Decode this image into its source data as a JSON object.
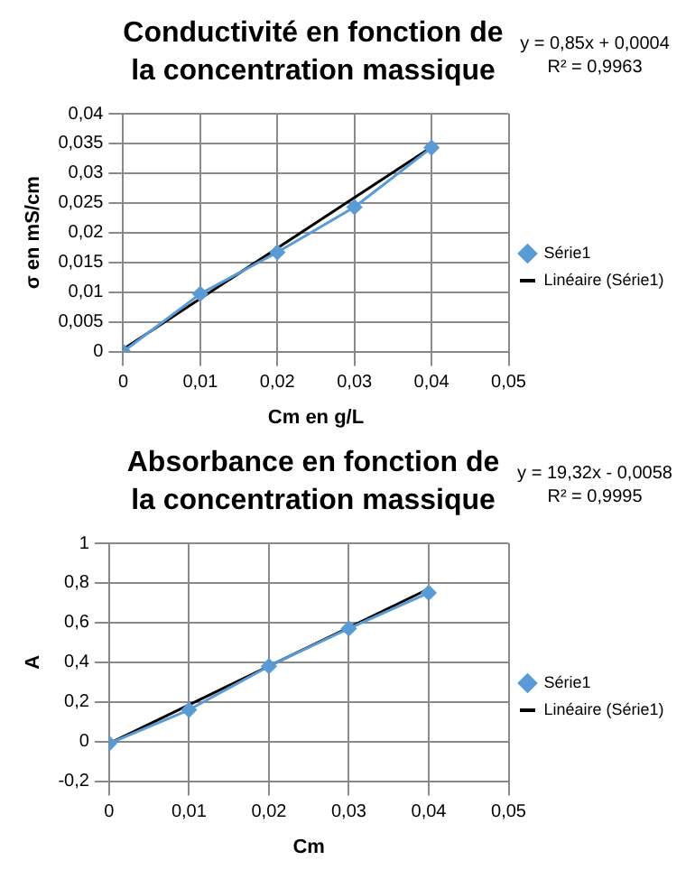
{
  "chart_data": [
    {
      "type": "line",
      "title": "Conductivité en fonction de la concentration massique",
      "xlabel": "Cm en g/L",
      "ylabel": "σ en mS/cm",
      "annotations": [
        "y = 0,85x + 0,0004",
        "R² = 0,9963"
      ],
      "legend": "right",
      "grid": true,
      "xlim": [
        0,
        0.05
      ],
      "xticks": [
        {
          "value": 0,
          "label": "0"
        },
        {
          "value": 0.01,
          "label": "0,01"
        },
        {
          "value": 0.02,
          "label": "0,02"
        },
        {
          "value": 0.03,
          "label": "0,03"
        },
        {
          "value": 0.04,
          "label": "0,04"
        },
        {
          "value": 0.05,
          "label": "0,05"
        }
      ],
      "ylim": [
        0,
        0.04
      ],
      "yticks": [
        {
          "value": 0,
          "label": "0"
        },
        {
          "value": 0.005,
          "label": "0,005"
        },
        {
          "value": 0.01,
          "label": "0,01"
        },
        {
          "value": 0.015,
          "label": "0,015"
        },
        {
          "value": 0.02,
          "label": "0,02"
        },
        {
          "value": 0.025,
          "label": "0,025"
        },
        {
          "value": 0.03,
          "label": "0,03"
        },
        {
          "value": 0.035,
          "label": "0,035"
        },
        {
          "value": 0.04,
          "label": "0,04"
        }
      ],
      "series": [
        {
          "name": "Série1",
          "color": "#5b9bd5",
          "marker": "diamond",
          "x": [
            0,
            0.01,
            0.02,
            0.03,
            0.04
          ],
          "values": [
            0,
            0.0097,
            0.0167,
            0.0243,
            0.0343
          ]
        },
        {
          "name": "Linéaire (Série1)",
          "color": "#000000",
          "marker": "none",
          "x": [
            0,
            0.04
          ],
          "values": [
            0.0004,
            0.0344
          ]
        }
      ]
    },
    {
      "type": "line",
      "title": "Absorbance en fonction de la concentration massique",
      "xlabel": "Cm",
      "ylabel": "A",
      "annotations": [
        "y = 19,32x - 0,0058",
        "R² = 0,9995"
      ],
      "legend": "right",
      "grid": true,
      "xlim": [
        0,
        0.05
      ],
      "xticks": [
        0,
        {
          "value": 0.01,
          "label": "0,01"
        },
        {
          "value": 0.02,
          "label": "0,02"
        },
        {
          "value": 0.03,
          "label": "0,03"
        },
        {
          "value": 0.04,
          "label": "0,04"
        },
        {
          "value": 0.05,
          "label": "0,05"
        }
      ],
      "ylim": [
        -0.2,
        1
      ],
      "yticks": [
        {
          "value": -0.2,
          "label": "-0,2"
        },
        {
          "value": 0,
          "label": "0"
        },
        {
          "value": 0.2,
          "label": "0,2"
        },
        {
          "value": 0.4,
          "label": "0,4"
        },
        {
          "value": 0.6,
          "label": "0,6"
        },
        {
          "value": 0.8,
          "label": "0,8"
        },
        1
      ],
      "series": [
        {
          "name": "Série1",
          "color": "#5b9bd5",
          "marker": "diamond",
          "x": [
            0,
            0.01,
            0.02,
            0.03,
            0.04
          ],
          "values": [
            -0.01,
            0.16,
            0.38,
            0.57,
            0.75
          ]
        },
        {
          "name": "Linéaire (Série1)",
          "color": "#000000",
          "marker": "none",
          "x": [
            0,
            0.04
          ],
          "values": [
            -0.01,
            0.77
          ]
        }
      ]
    }
  ]
}
